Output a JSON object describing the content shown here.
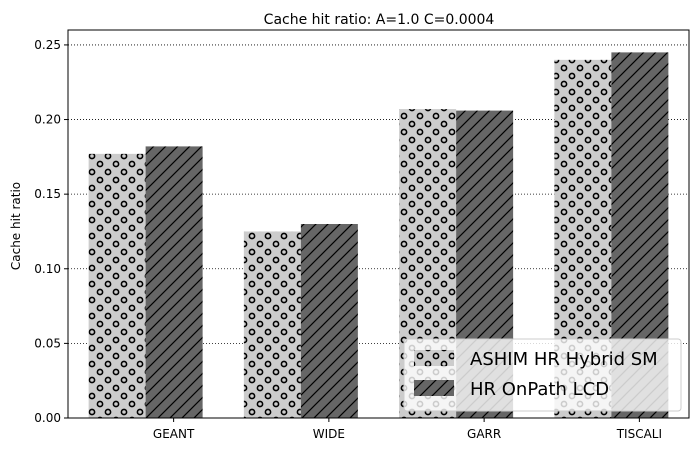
{
  "chart_data": {
    "type": "bar",
    "title": "Cache hit ratio: A=1.0 C=0.0004",
    "xlabel": "",
    "ylabel": "Cache hit ratio",
    "categories": [
      "GEANT",
      "WIDE",
      "GARR",
      "TISCALI"
    ],
    "series": [
      {
        "name": "ASHIM HR Hybrid SM",
        "values": [
          0.177,
          0.125,
          0.207,
          0.24
        ],
        "color": "#cccccc",
        "hatch": "circles"
      },
      {
        "name": "HR OnPath LCD",
        "values": [
          0.182,
          0.13,
          0.206,
          0.245
        ],
        "color": "#666666",
        "hatch": "diagonal"
      }
    ],
    "ylim": [
      0,
      0.26
    ],
    "yticks": [
      0.0,
      0.05,
      0.1,
      0.15,
      0.2,
      0.25
    ],
    "ytick_labels": [
      "0.00",
      "0.05",
      "0.10",
      "0.15",
      "0.20",
      "0.25"
    ],
    "grid": "y-dotted",
    "legend_position": "bottom-right"
  }
}
